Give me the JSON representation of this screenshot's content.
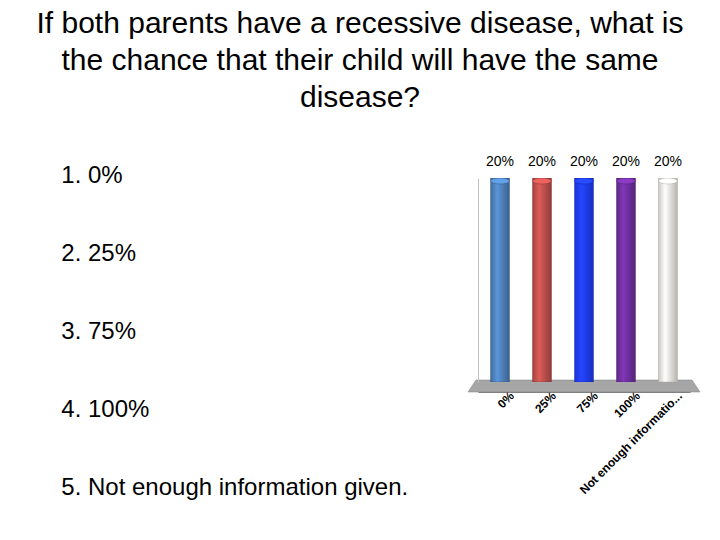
{
  "chart_data": {
    "type": "bar",
    "title": "If both parents have a recessive disease, what is the chance that their child will have the same disease?",
    "annotations": [
      "0%",
      "25%",
      "75%",
      "100%",
      "Not enough information given."
    ],
    "categories": [
      "0%",
      "25%",
      "75%",
      "100%",
      "Not enough informatio..."
    ],
    "values": [
      20,
      20,
      20,
      20,
      20
    ],
    "value_labels": [
      "20%",
      "20%",
      "20%",
      "20%",
      "20%"
    ],
    "data_labels": true,
    "colors": [
      "#4f81bd",
      "#c0504d",
      "#1f3dff",
      "#7030a0",
      "#f2efe4"
    ],
    "ylim": [
      0,
      20
    ],
    "yticks": [],
    "tick_labels": "x",
    "grid": false
  }
}
